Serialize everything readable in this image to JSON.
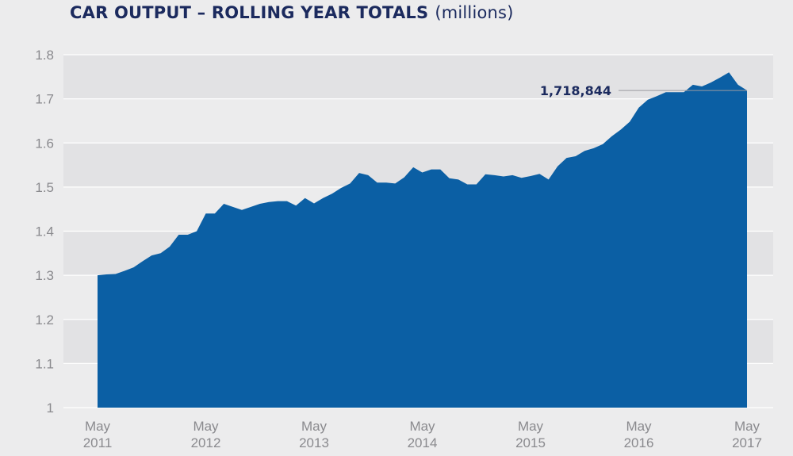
{
  "chart_data": {
    "type": "area",
    "title": "CAR OUTPUT – ROLLING YEAR TOTALS",
    "subtitle": "(millions)",
    "ylim": [
      1,
      1.8
    ],
    "yticks": [
      "1",
      "1.1",
      "1.2",
      "1.3",
      "1.4",
      "1.5",
      "1.6",
      "1.7",
      "1.8"
    ],
    "ytick_values": [
      1,
      1.1,
      1.2,
      1.3,
      1.4,
      1.5,
      1.6,
      1.7,
      1.8
    ],
    "xticks": [
      {
        "month": "May",
        "year": "2011",
        "index": 0
      },
      {
        "month": "May",
        "year": "2012",
        "index": 12
      },
      {
        "month": "May",
        "year": "2013",
        "index": 24
      },
      {
        "month": "May",
        "year": "2014",
        "index": 36
      },
      {
        "month": "May",
        "year": "2015",
        "index": 48
      },
      {
        "month": "May",
        "year": "2016",
        "index": 60
      },
      {
        "month": "May",
        "year": "2017",
        "index": 72
      }
    ],
    "grid": true,
    "color": "#0b5fa4",
    "series": [
      {
        "values": [
          1.3,
          1.302,
          1.303,
          1.31,
          1.318,
          1.332,
          1.345,
          1.35,
          1.365,
          1.392,
          1.392,
          1.4,
          1.44,
          1.44,
          1.462,
          1.455,
          1.448,
          1.455,
          1.462,
          1.466,
          1.468,
          1.468,
          1.458,
          1.475,
          1.463,
          1.475,
          1.485,
          1.498,
          1.508,
          1.532,
          1.527,
          1.51,
          1.51,
          1.508,
          1.522,
          1.545,
          1.533,
          1.54,
          1.54,
          1.52,
          1.517,
          1.506,
          1.506,
          1.529,
          1.527,
          1.524,
          1.527,
          1.521,
          1.525,
          1.53,
          1.517,
          1.547,
          1.566,
          1.57,
          1.582,
          1.588,
          1.597,
          1.615,
          1.63,
          1.648,
          1.68,
          1.698,
          1.706,
          1.715,
          1.715,
          1.715,
          1.732,
          1.728,
          1.737,
          1.748,
          1.76,
          1.732,
          1.719
        ]
      }
    ],
    "annotation": {
      "label": "1,718,844",
      "value": 1.718844
    }
  }
}
